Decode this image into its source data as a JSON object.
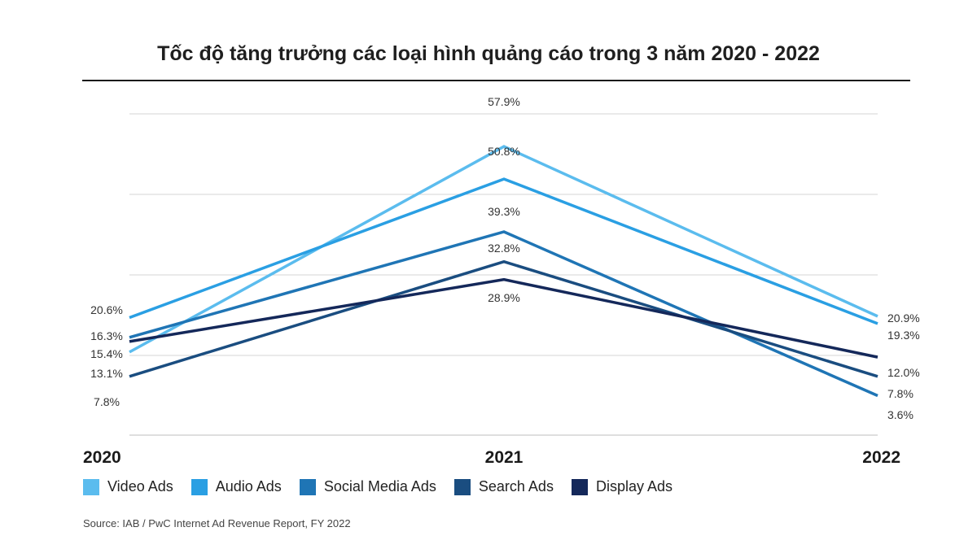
{
  "chart_data": {
    "type": "line",
    "title": "Tốc độ tăng trưởng các loại hình quảng cáo trong 3 năm 2020 - 2022",
    "xlabel": "",
    "ylabel": "",
    "x": [
      "2020",
      "2021",
      "2022"
    ],
    "ylim": [
      -5,
      65
    ],
    "grid": true,
    "legend_position": "bottom",
    "series": [
      {
        "name": "Video Ads",
        "color": "#5bbcee",
        "values": [
          13.1,
          57.9,
          20.9
        ],
        "labels": [
          "13.1%",
          "57.9%",
          "20.9%"
        ]
      },
      {
        "name": "Audio Ads",
        "color": "#2a9fe3",
        "values": [
          20.6,
          50.8,
          19.3
        ],
        "labels": [
          "20.6%",
          "50.8%",
          "19.3%"
        ]
      },
      {
        "name": "Social Media Ads",
        "color": "#1f75b5",
        "values": [
          16.3,
          39.3,
          3.6
        ],
        "labels": [
          "16.3%",
          "39.3%",
          "3.6%"
        ]
      },
      {
        "name": "Search Ads",
        "color": "#1a4d80",
        "values": [
          7.8,
          32.8,
          7.8
        ],
        "labels": [
          "7.8%",
          "32.8%",
          "7.8%"
        ]
      },
      {
        "name": "Display Ads",
        "color": "#14285a",
        "values": [
          15.4,
          28.9,
          12.0
        ],
        "labels": [
          "15.4%",
          "28.9%",
          "12.0%"
        ]
      }
    ]
  },
  "source": "Source: IAB / PwC Internet Ad Revenue Report, FY 2022"
}
